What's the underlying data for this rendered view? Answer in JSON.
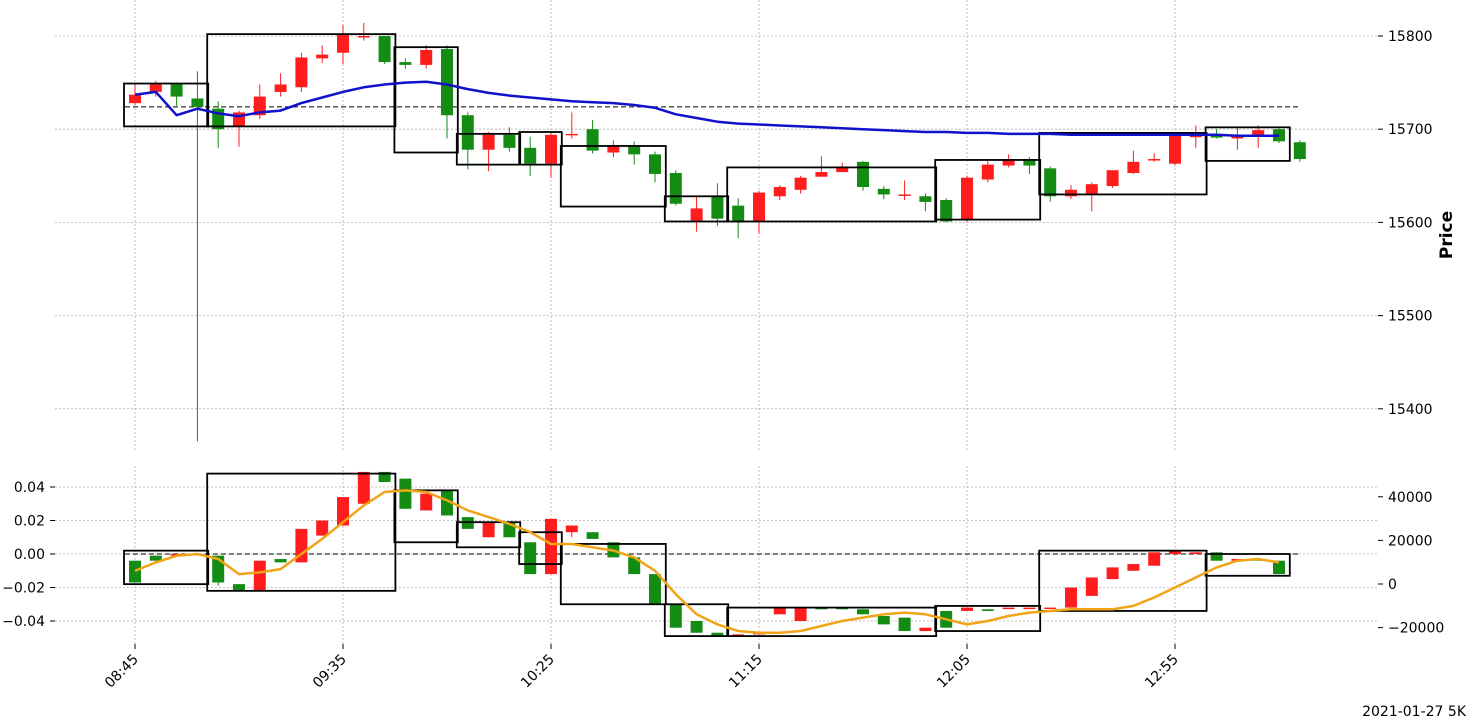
{
  "chart_data": {
    "type": "candlestick",
    "footer": "2021-01-27 5K",
    "x_tick_labels": [
      "08:45",
      "09:35",
      "10:25",
      "11:15",
      "12:05",
      "12:55"
    ],
    "grid": true,
    "colors": {
      "up": "#ff1c1c",
      "down": "#148c14",
      "ma_price": "#1111cc",
      "ma_indicator": "#f0a416",
      "box": "#000000",
      "reference": "#000000"
    },
    "price_panel": {
      "ylabel": "Price",
      "y_ticks": [
        15800,
        15700,
        15600,
        15500,
        15400
      ],
      "ylim": [
        15350,
        15830
      ],
      "reference_level": 15724,
      "candles": [
        [
          15728,
          15737,
          15726,
          15748
        ],
        [
          15740,
          15748,
          15735,
          15752
        ],
        [
          15748,
          15735,
          15725,
          15750
        ],
        [
          15733,
          15724,
          15365,
          15762
        ],
        [
          15722,
          15700,
          15680,
          15730
        ],
        [
          15703,
          15718,
          15681,
          15720
        ],
        [
          15715,
          15735,
          15711,
          15748
        ],
        [
          15740,
          15748,
          15735,
          15760
        ],
        [
          15745,
          15777,
          15740,
          15782
        ],
        [
          15776,
          15780,
          15771,
          15790
        ],
        [
          15782,
          15802,
          15770,
          15812
        ],
        [
          15800,
          15800,
          15795,
          15814
        ],
        [
          15800,
          15772,
          15770,
          15800
        ],
        [
          15772,
          15769,
          15765,
          15776
        ],
        [
          15769,
          15785,
          15765,
          15790
        ],
        [
          15786,
          15715,
          15690,
          15790
        ],
        [
          15715,
          15678,
          15657,
          15718
        ],
        [
          15678,
          15694,
          15655,
          15697
        ],
        [
          15694,
          15680,
          15676,
          15702
        ],
        [
          15680,
          15663,
          15650,
          15692
        ],
        [
          15663,
          15694,
          15648,
          15697
        ],
        [
          15694,
          15695,
          15690,
          15718
        ],
        [
          15700,
          15677,
          15674,
          15710
        ],
        [
          15675,
          15683,
          15670,
          15688
        ],
        [
          15683,
          15673,
          15662,
          15687
        ],
        [
          15673,
          15652,
          15643,
          15676
        ],
        [
          15653,
          15620,
          15618,
          15656
        ],
        [
          15602,
          15615,
          15590,
          15628
        ],
        [
          15628,
          15604,
          15596,
          15642
        ],
        [
          15618,
          15600,
          15583,
          15626
        ],
        [
          15601,
          15632,
          15588,
          15634
        ],
        [
          15628,
          15638,
          15624,
          15640
        ],
        [
          15635,
          15648,
          15631,
          15650
        ],
        [
          15649,
          15654,
          15649,
          15671
        ],
        [
          15654,
          15660,
          15654,
          15664
        ],
        [
          15665,
          15638,
          15634,
          15666
        ],
        [
          15636,
          15630,
          15625,
          15639
        ],
        [
          15630,
          15630,
          15624,
          15645
        ],
        [
          15628,
          15622,
          15612,
          15631
        ],
        [
          15624,
          15601,
          15600,
          15626
        ],
        [
          15603,
          15648,
          15600,
          15650
        ],
        [
          15646,
          15662,
          15643,
          15666
        ],
        [
          15661,
          15668,
          15659,
          15673
        ],
        [
          15668,
          15661,
          15652,
          15670
        ],
        [
          15658,
          15628,
          15622,
          15660
        ],
        [
          15628,
          15635,
          15625,
          15640
        ],
        [
          15631,
          15641,
          15612,
          15643
        ],
        [
          15639,
          15656,
          15637,
          15656
        ],
        [
          15653,
          15665,
          15652,
          15677
        ],
        [
          15667,
          15668,
          15665,
          15674
        ],
        [
          15663,
          15694,
          15661,
          15696
        ],
        [
          15693,
          15693,
          15680,
          15704
        ],
        [
          15693,
          15691,
          15690,
          15700
        ],
        [
          15690,
          15693,
          15678,
          15702
        ],
        [
          15692,
          15699,
          15680,
          15704
        ],
        [
          15700,
          15687,
          15685,
          15701
        ],
        [
          15686,
          15668,
          15665,
          15688
        ]
      ],
      "ma": [
        15737,
        15740,
        15715,
        15722,
        15717,
        15714,
        15718,
        15720,
        15728,
        15734,
        15740,
        15745,
        15748,
        15750,
        15751,
        15748,
        15743,
        15739,
        15736,
        15734,
        15732,
        15730,
        15729,
        15728,
        15726,
        15723,
        15716,
        15712,
        15708,
        15706,
        15705,
        15704,
        15703,
        15702,
        15701,
        15700,
        15699,
        15698,
        15697,
        15697,
        15696,
        15696,
        15695,
        15695,
        15695,
        15694,
        15694,
        15694,
        15694,
        15694,
        15694,
        15694,
        15694,
        15693,
        15693,
        15693
      ],
      "boxes": [
        [
          0,
          4,
          15703,
          15749
        ],
        [
          4,
          13,
          15703,
          15802
        ],
        [
          13,
          16,
          15675,
          15788
        ],
        [
          16,
          19,
          15662,
          15695
        ],
        [
          19,
          21,
          15662,
          15697
        ],
        [
          21,
          26,
          15617,
          15682
        ],
        [
          26,
          29,
          15601,
          15628
        ],
        [
          29,
          39,
          15601,
          15659
        ],
        [
          39,
          44,
          15603,
          15667
        ],
        [
          44,
          52,
          15630,
          15696
        ],
        [
          52,
          56,
          15666,
          15702
        ]
      ]
    },
    "indicator_panel": {
      "y_ticks_left": [
        0.04,
        0.02,
        0.0,
        -0.02,
        -0.04
      ],
      "ylim_left": [
        -0.048,
        0.049
      ],
      "y_ticks_right": [
        40000,
        20000,
        0,
        -20000
      ],
      "reference_level": 0.0,
      "candles": [
        [
          -0.004,
          -0.017,
          -0.017,
          -0.004
        ],
        [
          -0.001,
          -0.004,
          -0.004,
          -0.001
        ],
        [
          -0.001,
          0.0,
          -0.001,
          0.0
        ],
        [
          0.0,
          0.0,
          -0.001,
          0.0
        ],
        [
          -0.001,
          -0.017,
          -0.019,
          -0.001
        ],
        [
          -0.018,
          -0.022,
          -0.022,
          -0.018
        ],
        [
          -0.022,
          -0.004,
          -0.022,
          -0.004
        ],
        [
          -0.003,
          -0.005,
          -0.005,
          -0.003
        ],
        [
          -0.005,
          0.015,
          -0.005,
          0.015
        ],
        [
          0.011,
          0.02,
          0.011,
          0.02
        ],
        [
          0.017,
          0.034,
          0.017,
          0.034
        ],
        [
          0.03,
          0.049,
          0.03,
          0.049
        ],
        [
          0.049,
          0.043,
          0.043,
          0.049
        ],
        [
          0.045,
          0.027,
          0.027,
          0.045
        ],
        [
          0.026,
          0.036,
          0.026,
          0.037
        ],
        [
          0.038,
          0.023,
          0.023,
          0.038
        ],
        [
          0.022,
          0.015,
          0.015,
          0.022
        ],
        [
          0.01,
          0.019,
          0.01,
          0.019
        ],
        [
          0.019,
          0.01,
          0.01,
          0.019
        ],
        [
          0.007,
          -0.012,
          -0.012,
          0.007
        ],
        [
          -0.012,
          0.021,
          -0.012,
          0.021
        ],
        [
          0.013,
          0.017,
          0.01,
          0.017
        ],
        [
          0.013,
          0.009,
          0.009,
          0.013
        ],
        [
          0.007,
          -0.002,
          -0.002,
          0.007
        ],
        [
          -0.002,
          -0.012,
          -0.012,
          -0.002
        ],
        [
          -0.012,
          -0.03,
          -0.03,
          -0.012
        ],
        [
          -0.03,
          -0.044,
          -0.044,
          -0.03
        ],
        [
          -0.04,
          -0.047,
          -0.047,
          -0.04
        ],
        [
          -0.047,
          -0.049,
          -0.049,
          -0.047
        ],
        [
          -0.049,
          -0.048,
          -0.049,
          -0.048
        ],
        [
          -0.048,
          -0.047,
          -0.048,
          -0.047
        ],
        [
          -0.036,
          -0.032,
          -0.036,
          -0.032
        ],
        [
          -0.04,
          -0.032,
          -0.04,
          -0.032
        ],
        [
          -0.032,
          -0.033,
          -0.033,
          -0.032
        ],
        [
          -0.032,
          -0.033,
          -0.033,
          -0.032
        ],
        [
          -0.033,
          -0.036,
          -0.036,
          -0.033
        ],
        [
          -0.037,
          -0.042,
          -0.042,
          -0.037
        ],
        [
          -0.038,
          -0.046,
          -0.046,
          -0.038
        ],
        [
          -0.046,
          -0.044,
          -0.046,
          -0.044
        ],
        [
          -0.034,
          -0.044,
          -0.044,
          -0.034
        ],
        [
          -0.034,
          -0.032,
          -0.034,
          -0.032
        ],
        [
          -0.033,
          -0.034,
          -0.034,
          -0.033
        ],
        [
          -0.032,
          -0.032,
          -0.032,
          -0.032
        ],
        [
          -0.032,
          -0.032,
          -0.032,
          -0.032
        ],
        [
          -0.032,
          -0.032,
          -0.032,
          -0.032
        ],
        [
          -0.032,
          -0.02,
          -0.032,
          -0.02
        ],
        [
          -0.025,
          -0.014,
          -0.025,
          -0.014
        ],
        [
          -0.015,
          -0.008,
          -0.015,
          -0.008
        ],
        [
          -0.01,
          -0.006,
          -0.01,
          -0.006
        ],
        [
          -0.007,
          0.001,
          -0.007,
          0.001
        ],
        [
          0.0,
          0.002,
          0.0,
          0.002
        ],
        [
          0.0,
          0.001,
          0.0,
          0.001
        ],
        [
          0.001,
          -0.004,
          -0.004,
          0.001
        ],
        [
          -0.004,
          -0.003,
          -0.004,
          -0.003
        ],
        [
          -0.003,
          -0.004,
          -0.004,
          -0.003
        ],
        [
          -0.004,
          -0.012,
          -0.012,
          -0.004
        ]
      ],
      "ma": [
        -0.01,
        -0.005,
        -0.001,
        0.0,
        -0.003,
        -0.012,
        -0.011,
        -0.009,
        0.0,
        0.009,
        0.019,
        0.029,
        0.037,
        0.038,
        0.037,
        0.032,
        0.026,
        0.022,
        0.018,
        0.013,
        0.006,
        0.006,
        0.004,
        0.002,
        -0.002,
        -0.01,
        -0.024,
        -0.036,
        -0.042,
        -0.046,
        -0.047,
        -0.047,
        -0.046,
        -0.043,
        -0.04,
        -0.038,
        -0.036,
        -0.035,
        -0.036,
        -0.039,
        -0.042,
        -0.04,
        -0.037,
        -0.035,
        -0.034,
        -0.033,
        -0.033,
        -0.033,
        -0.031,
        -0.026,
        -0.02,
        -0.014,
        -0.008,
        -0.004,
        -0.003,
        -0.005
      ],
      "boxes": [
        [
          0,
          4,
          -0.018,
          0.002
        ],
        [
          4,
          13,
          -0.022,
          0.048
        ],
        [
          13,
          16,
          0.007,
          0.038
        ],
        [
          16,
          19,
          0.004,
          0.019
        ],
        [
          19,
          21,
          -0.006,
          0.013
        ],
        [
          21,
          26,
          -0.03,
          0.006
        ],
        [
          26,
          29,
          -0.049,
          -0.03
        ],
        [
          29,
          39,
          -0.049,
          -0.032
        ],
        [
          39,
          44,
          -0.046,
          -0.031
        ],
        [
          44,
          52,
          -0.034,
          0.002
        ],
        [
          52,
          56,
          -0.013,
          0.0
        ]
      ]
    }
  }
}
